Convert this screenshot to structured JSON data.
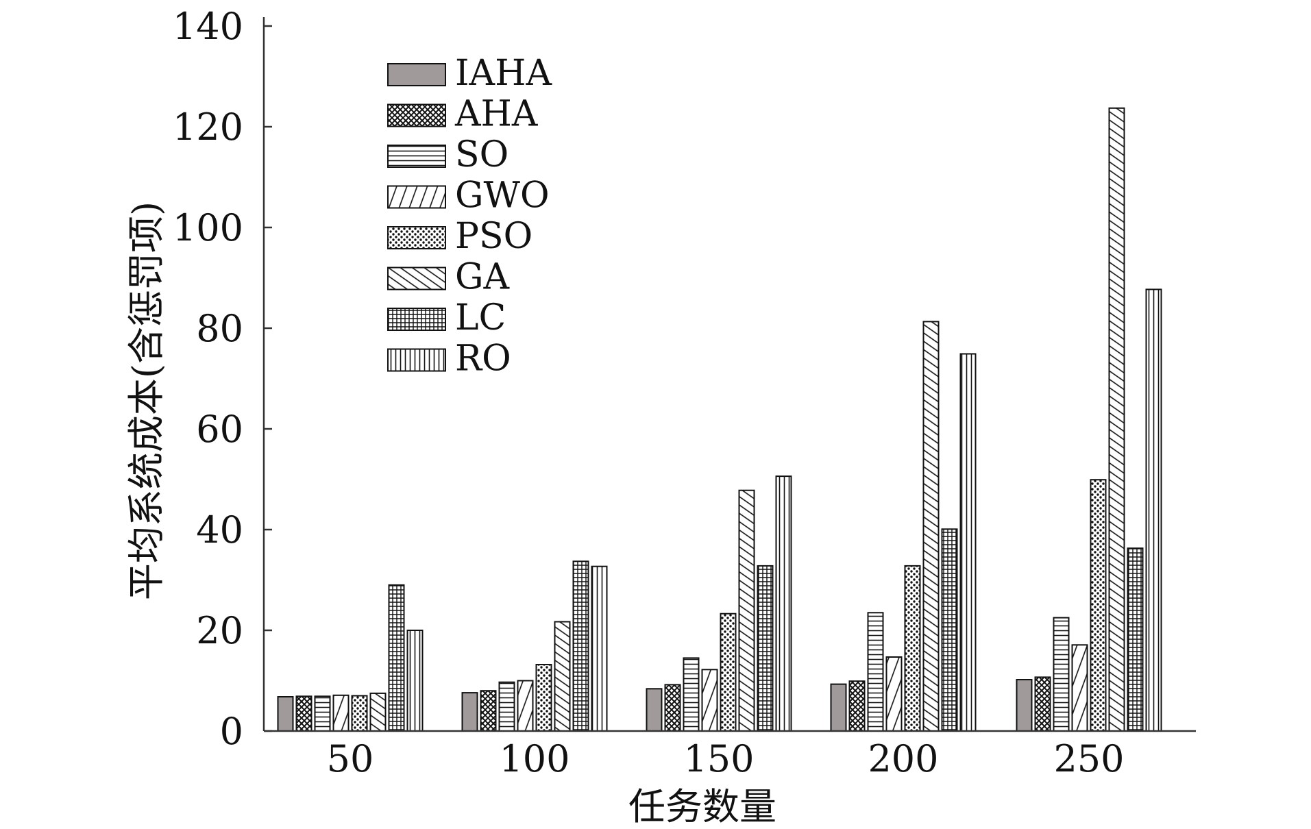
{
  "chart_data": {
    "type": "bar",
    "xlabel": "任务数量",
    "ylabel": "平均系统成本(含惩罚项)",
    "categories": [
      "50",
      "100",
      "150",
      "200",
      "250"
    ],
    "ylim": [
      0,
      140
    ],
    "yticks": [
      "0",
      "20",
      "40",
      "60",
      "80",
      "100",
      "120",
      "140"
    ],
    "grid": false,
    "legend_position": "top-left",
    "series": [
      {
        "name": "IAHA",
        "pattern": "solid-gray",
        "values": [
          6.8,
          7.6,
          8.4,
          9.3,
          10.2
        ]
      },
      {
        "name": "AHA",
        "pattern": "crosshatch",
        "values": [
          6.9,
          8.0,
          9.2,
          9.9,
          10.7
        ]
      },
      {
        "name": "SO",
        "pattern": "horizontal-lines",
        "values": [
          6.9,
          9.7,
          14.5,
          23.5,
          22.5
        ]
      },
      {
        "name": "GWO",
        "pattern": "diagonal-lines-shallow",
        "values": [
          7.1,
          10.0,
          12.2,
          14.7,
          17.1
        ]
      },
      {
        "name": "PSO",
        "pattern": "dots",
        "values": [
          7.0,
          13.2,
          23.3,
          32.8,
          49.9
        ]
      },
      {
        "name": "GA",
        "pattern": "diagonal-lines-steep",
        "values": [
          7.5,
          21.7,
          47.8,
          81.3,
          123.7
        ]
      },
      {
        "name": "LC",
        "pattern": "grid",
        "values": [
          29.0,
          33.7,
          32.8,
          40.1,
          36.3
        ]
      },
      {
        "name": "RO",
        "pattern": "vertical-lines",
        "values": [
          20.0,
          32.7,
          50.6,
          74.9,
          87.7
        ]
      }
    ]
  }
}
